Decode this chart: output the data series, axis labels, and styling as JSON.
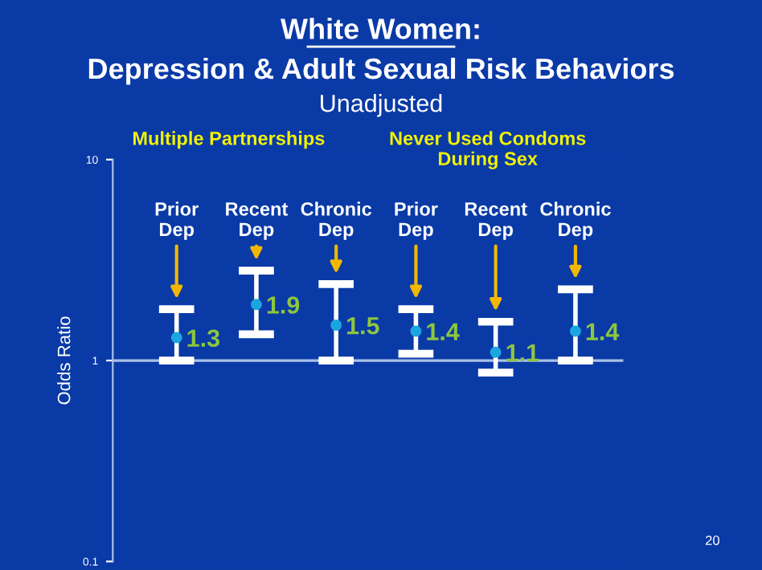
{
  "chart_data": {
    "type": "scatter",
    "title": "White Women:\nDepression & Adult Sexual Risk Behaviors",
    "subtitle": "Unadjusted",
    "ylabel": "Odds Ratio",
    "categories": [
      "Prior\nDep",
      "Recent\nDep",
      "Chronic\nDep",
      "Prior\nDep",
      "Recent\nDep",
      "Chronic\nDep"
    ],
    "series": [
      {
        "color": "#1ca6e0",
        "values": [
          1.3,
          1.9,
          1.5,
          1.4,
          1.1,
          1.4
        ],
        "errors": [
          [
            1.0,
            1.8
          ],
          [
            1.35,
            2.8
          ],
          [
            1.0,
            2.4
          ],
          [
            1.08,
            1.8
          ],
          [
            0.87,
            1.56
          ],
          [
            1.0,
            2.26
          ]
        ]
      }
    ],
    "ref_lines": [
      {
        "axis": "y",
        "value": 1,
        "color": "#a9c0e8"
      }
    ],
    "data_labels": true,
    "marker": "circle",
    "log": true,
    "ylim": [
      0.1,
      10
    ],
    "yticks": [
      {
        "value": 0.1,
        "label": "0.1"
      },
      1,
      10
    ],
    "grid": false,
    "legend": false,
    "annotations": [
      "Multiple Partnerships",
      "Never Used Condoms\nDuring Sex",
      "20"
    ]
  }
}
